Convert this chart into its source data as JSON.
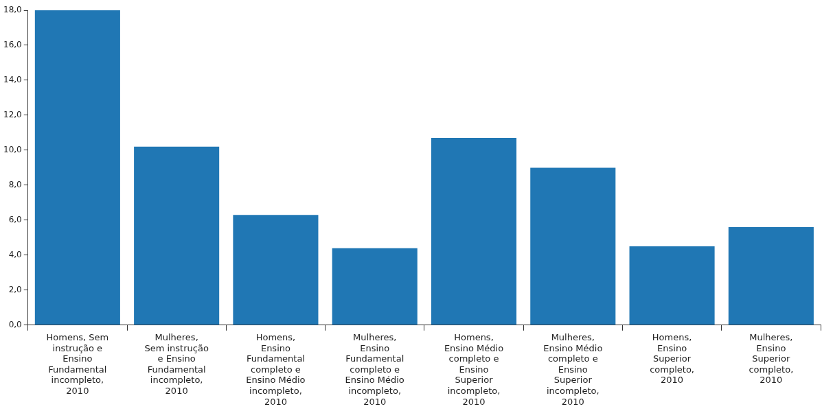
{
  "chart_data": {
    "type": "bar",
    "categories": [
      "Homens, Sem instrução e Ensino Fundamental incompleto, 2010",
      "Mulheres, Sem instrução e Ensino Fundamental incompleto, 2010",
      "Homens, Ensino Fundamental completo e Ensino Médio incompleto, 2010",
      "Mulheres, Ensino Fundamental completo e Ensino Médio incompleto, 2010",
      "Homens, Ensino Médio completo e Ensino Superior incompleto, 2010",
      "Mulheres, Ensino Médio completo e Ensino Superior incompleto, 2010",
      "Homens, Ensino Superior completo, 2010",
      "Mulheres, Ensino Superior completo, 2010"
    ],
    "values": [
      18.0,
      10.2,
      6.3,
      4.4,
      10.7,
      9.0,
      4.5,
      5.6
    ],
    "color": "#2077b4",
    "ylim": [
      0,
      18
    ],
    "yticks": [
      {
        "value": 0,
        "label": "0,0"
      },
      {
        "value": 2,
        "label": "2,0"
      },
      {
        "value": 4,
        "label": "4,0"
      },
      {
        "value": 6,
        "label": "6,0"
      },
      {
        "value": 8,
        "label": "8,0"
      },
      {
        "value": 10,
        "label": "10,0"
      },
      {
        "value": 12,
        "label": "12,0"
      },
      {
        "value": 14,
        "label": "14,0"
      },
      {
        "value": 16,
        "label": "16,0"
      },
      {
        "value": 18,
        "label": "18,0"
      }
    ],
    "grid": false,
    "legend": false
  }
}
